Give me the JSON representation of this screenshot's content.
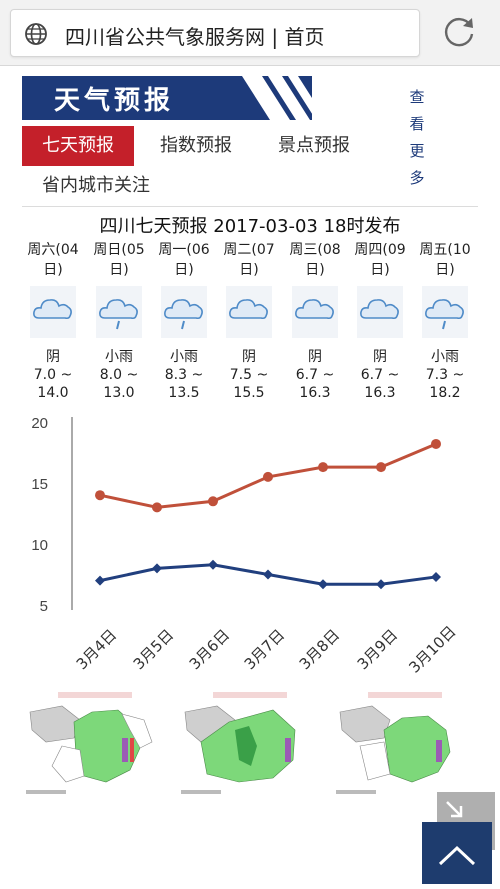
{
  "browser": {
    "url_text": "四川省公共气象服务网 | 首页"
  },
  "banner": {
    "title": "天气预报",
    "more_label": "查看更多"
  },
  "tabs": [
    {
      "label": "七天预报",
      "active": true
    },
    {
      "label": "指数预报",
      "active": false
    },
    {
      "label": "景点预报",
      "active": false
    },
    {
      "label": "省内城市关注",
      "active": false
    }
  ],
  "forecast": {
    "title": "四川七天预报 2017-03-03 18时发布",
    "days": [
      {
        "name": "周六(04日)",
        "condition": "阴",
        "icon": "cloudy-icon",
        "temp": "7.0 ~ 14.0"
      },
      {
        "name": "周日(05日)",
        "condition": "小雨",
        "icon": "light-rain-icon",
        "temp": "8.0 ~ 13.0"
      },
      {
        "name": "周一(06日)",
        "condition": "小雨",
        "icon": "light-rain-icon",
        "temp": "8.3 ~ 13.5"
      },
      {
        "name": "周二(07日)",
        "condition": "阴",
        "icon": "cloudy-icon",
        "temp": "7.5 ~ 15.5"
      },
      {
        "name": "周三(08日)",
        "condition": "阴",
        "icon": "cloudy-icon",
        "temp": "6.7 ~ 16.3"
      },
      {
        "name": "周四(09日)",
        "condition": "阴",
        "icon": "cloudy-icon",
        "temp": "6.7 ~ 16.3"
      },
      {
        "name": "周五(10日)",
        "condition": "小雨",
        "icon": "light-rain-icon",
        "temp": "7.3 ~ 18.2"
      }
    ]
  },
  "chart_data": {
    "type": "line",
    "categories": [
      "3月4日",
      "3月5日",
      "3月6日",
      "3月7日",
      "3月8日",
      "3月9日",
      "3月10日"
    ],
    "series": [
      {
        "values": [
          14.0,
          13.0,
          13.5,
          15.5,
          16.3,
          16.3,
          18.2
        ],
        "color": "#c0503a"
      },
      {
        "values": [
          7.0,
          8.0,
          8.3,
          7.5,
          6.7,
          6.7,
          7.3
        ],
        "color": "#213f7e"
      }
    ],
    "yticks": [
      5,
      10,
      15,
      20
    ],
    "ylim": [
      5,
      20
    ],
    "grid": false
  },
  "maps": [
    {
      "caption_icon": "rain-forecast-map"
    },
    {
      "caption_icon": "rain-forecast-map"
    },
    {
      "caption_icon": "rain-forecast-map"
    }
  ]
}
